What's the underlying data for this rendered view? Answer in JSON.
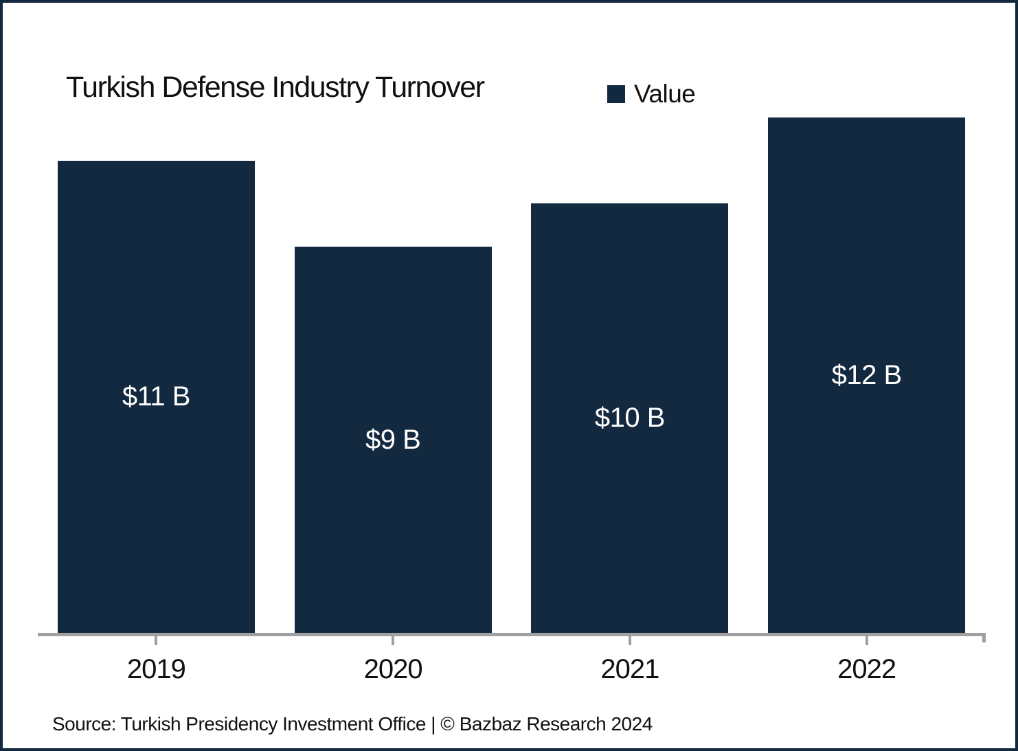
{
  "title": "Turkish Defense Industry Turnover",
  "legend": {
    "label": "Value",
    "swatch_color": "#13293F"
  },
  "source_note": "Source: Turkish Presidency Investment Office | © Bazbaz Research 2024",
  "colors": {
    "bar": "#13293F",
    "bar_label": "#FFFFFF",
    "axis_line": "#A0A0A0",
    "frame_border": "#13293F",
    "background": "#FFFFFF",
    "text": "#111111"
  },
  "chart_data": {
    "type": "bar",
    "title": "Turkish Defense Industry Turnover",
    "categories": [
      "2019",
      "2020",
      "2021",
      "2022"
    ],
    "series": [
      {
        "name": "Value",
        "values": [
          11,
          9,
          10,
          12
        ]
      }
    ],
    "bar_labels": [
      "$11 B",
      "$9 B",
      "$10 B",
      "$12 B"
    ],
    "xlabel": "",
    "ylabel": "",
    "ylim": [
      0,
      12.2
    ],
    "gridlines": false,
    "y_axis_visible": false,
    "legend_position": "top-right",
    "bar_label_position": "center"
  }
}
